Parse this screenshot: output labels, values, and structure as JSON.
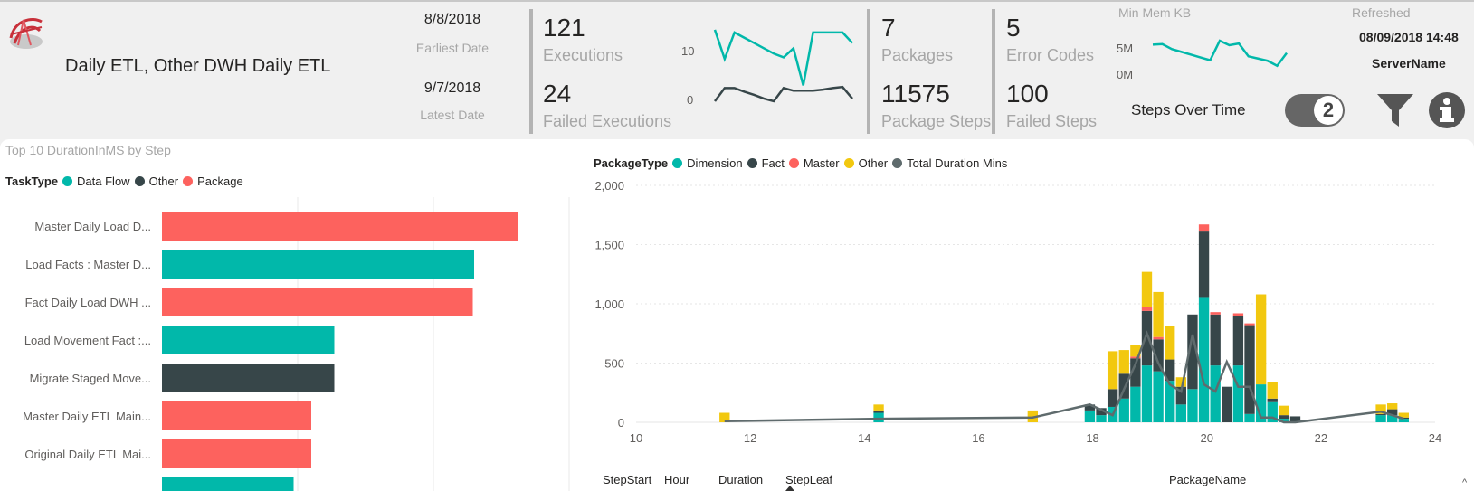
{
  "header": {
    "title": "Daily ETL, Other DWH Daily ETL",
    "earliest_date": "8/8/2018",
    "earliest_label": "Earliest Date",
    "latest_date": "9/7/2018",
    "latest_label": "Latest Date"
  },
  "kpis": {
    "executions": "121",
    "executions_label": "Executions",
    "failed_executions": "24",
    "failed_executions_label": "Failed Executions",
    "packages": "7",
    "packages_label": "Packages",
    "package_steps": "11575",
    "package_steps_label": "Package Steps",
    "error_codes": "5",
    "error_codes_label": "Error Codes",
    "failed_steps": "100",
    "failed_steps_label": "Failed Steps"
  },
  "sparkline": {
    "y_ticks": [
      "10",
      "0"
    ],
    "colors": {
      "executions": "#01b8aa",
      "failed": "#374649"
    },
    "executions": [
      13.5,
      8,
      13,
      12,
      11,
      10,
      9,
      8.3,
      10,
      3,
      13,
      13,
      13,
      13,
      11
    ],
    "failed": [
      0,
      2.5,
      2.5,
      1.8,
      1.2,
      0.5,
      0,
      2.5,
      2,
      2,
      2,
      2.2,
      2.5,
      2.7,
      0.5
    ]
  },
  "mem_sparkline": {
    "label": "Min Mem KB",
    "y_ticks": [
      "5M",
      "0M"
    ],
    "color": "#01b8aa",
    "values": [
      5.3,
      5.4,
      4.5,
      4,
      3.5,
      3,
      2.5,
      6,
      5.2,
      5.5,
      3.2,
      2.8,
      2.4,
      1.5,
      3.8
    ]
  },
  "refresh": {
    "label": "Refreshed",
    "value": "08/09/2018 14:48",
    "server_label": "ServerName"
  },
  "controls": {
    "steps_over_time_label": "Steps Over Time",
    "toggle_value": "2",
    "filter_icon": "filter-icon",
    "info_icon": "info-icon"
  },
  "bar_chart": {
    "title": "Top 10  DurationInMS by Step",
    "legend_title": "TaskType",
    "legend": [
      {
        "name": "Data Flow",
        "color": "#01b8aa"
      },
      {
        "name": "Other",
        "color": "#374649"
      },
      {
        "name": "Package",
        "color": "#fd625e"
      }
    ]
  },
  "combo_chart": {
    "legend_title": "PackageType",
    "legend": [
      {
        "name": "Dimension",
        "color": "#01b8aa"
      },
      {
        "name": "Fact",
        "color": "#374649"
      },
      {
        "name": "Master",
        "color": "#fd625e"
      },
      {
        "name": "Other",
        "color": "#f2c80f"
      },
      {
        "name": "Total Duration Mins",
        "color": "#5f6b6d"
      }
    ]
  },
  "table_headers": [
    "StepStart",
    "Hour",
    "Duration",
    "StepLeaf",
    "PackageName"
  ],
  "chart_data": [
    {
      "type": "bar",
      "orientation": "horizontal",
      "title": "Top 10  DurationInMS by Step",
      "legend_title": "TaskType",
      "categories": [
        "Master Daily Load D...",
        "Load Facts : Master D...",
        "Fact Daily Load DWH ...",
        "Load Movement Fact :...",
        "Migrate Staged Move...",
        "Master Daily ETL Main...",
        "Original Daily ETL Mai...",
        ""
      ],
      "values": [
        2.62,
        2.3,
        2.29,
        1.27,
        1.27,
        1.1,
        1.1,
        0.97
      ],
      "task_types": [
        "Package",
        "Data Flow",
        "Package",
        "Data Flow",
        "Other",
        "Package",
        "Package",
        "Data Flow"
      ],
      "xlim": [
        0,
        3
      ],
      "grid": true
    },
    {
      "type": "bar",
      "stacked": true,
      "legend_title": "PackageType",
      "xlim": [
        10,
        24
      ],
      "ylim": [
        0,
        2000
      ],
      "x_ticks": [
        10,
        12,
        14,
        16,
        18,
        20,
        22,
        24
      ],
      "y_ticks": [
        0,
        500,
        1000,
        1500,
        2000
      ],
      "y_tick_labels": [
        "0",
        "500",
        "1,000",
        "1,500",
        "2,000"
      ],
      "bar_width": 0.18,
      "x": [
        11.55,
        14.25,
        16.95,
        17.95,
        18.15,
        18.35,
        18.55,
        18.75,
        18.95,
        19.15,
        19.35,
        19.55,
        19.75,
        19.95,
        20.15,
        20.35,
        20.55,
        20.75,
        20.95,
        21.15,
        21.35,
        21.55,
        23.05,
        23.25,
        23.45
      ],
      "series": [
        {
          "name": "Dimension",
          "values": [
            0,
            80,
            0,
            100,
            60,
            130,
            200,
            300,
            480,
            430,
            350,
            150,
            280,
            1050,
            480,
            0,
            480,
            70,
            320,
            170,
            30,
            0,
            60,
            60,
            30
          ]
        },
        {
          "name": "Fact",
          "values": [
            0,
            20,
            0,
            50,
            60,
            150,
            210,
            240,
            460,
            270,
            180,
            150,
            630,
            560,
            430,
            300,
            420,
            750,
            0,
            30,
            30,
            50,
            10,
            50,
            10
          ]
        },
        {
          "name": "Master",
          "values": [
            0,
            0,
            0,
            0,
            0,
            0,
            0,
            0,
            0,
            0,
            0,
            0,
            0,
            0,
            0,
            0,
            0,
            0,
            0,
            0,
            0,
            0,
            0,
            0,
            0
          ]
        },
        {
          "name": "Other",
          "values": [
            80,
            50,
            100,
            0,
            0,
            320,
            200,
            100,
            300,
            380,
            280,
            80,
            0,
            0,
            0,
            0,
            0,
            0,
            760,
            140,
            80,
            0,
            80,
            50,
            40
          ]
        }
      ],
      "master_extra": [
        0,
        0,
        0,
        0,
        0,
        0,
        0,
        15,
        30,
        20,
        0,
        0,
        0,
        60,
        20,
        0,
        20,
        15,
        0,
        0,
        0,
        0,
        0,
        0,
        0
      ],
      "line": {
        "name": "Total Duration Mins",
        "x": [
          11.55,
          14.25,
          16.95,
          17.95,
          18.35,
          18.55,
          18.75,
          18.95,
          19.15,
          19.35,
          19.55,
          19.75,
          19.95,
          20.15,
          20.35,
          20.55,
          20.75,
          20.95,
          21.15,
          21.35,
          21.55,
          23.05,
          23.25,
          23.45
        ],
        "values": [
          10,
          30,
          40,
          150,
          60,
          280,
          490,
          750,
          500,
          320,
          260,
          740,
          320,
          260,
          510,
          300,
          300,
          40,
          40,
          0,
          0,
          90,
          60,
          30
        ]
      }
    }
  ]
}
